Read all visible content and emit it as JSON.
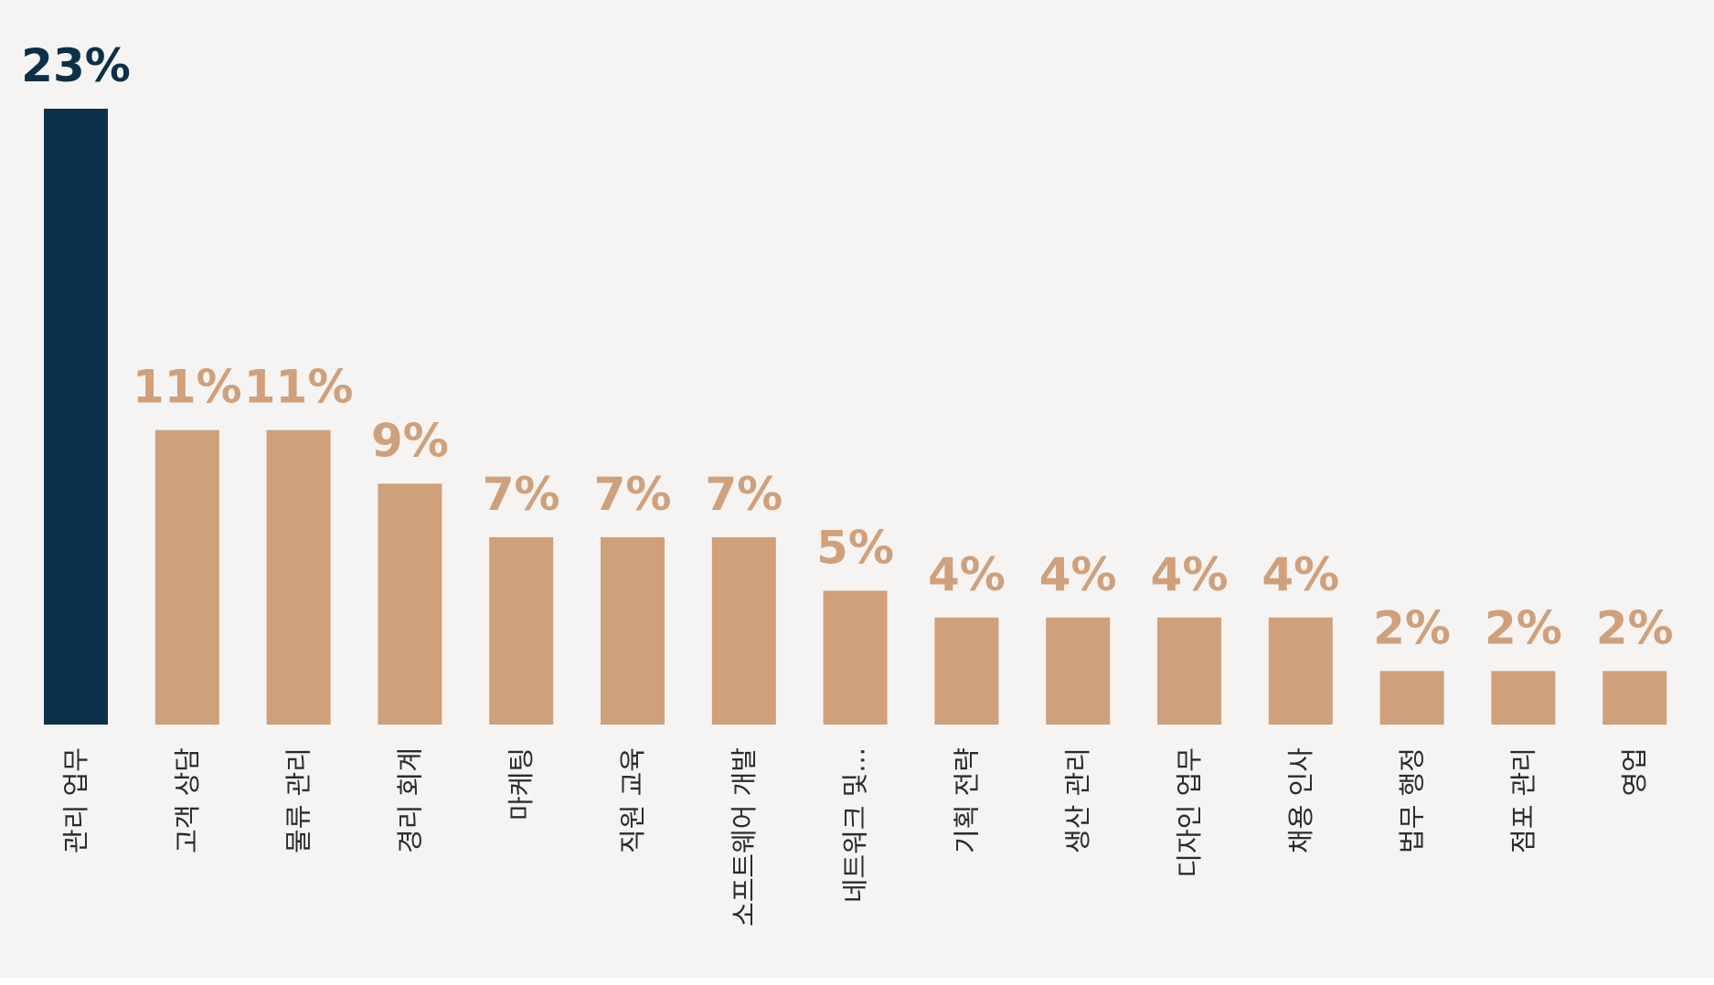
{
  "chart_data": {
    "type": "bar",
    "categories": [
      "관리 업무",
      "고객 상담",
      "물류 관리",
      "경리 회계",
      "마케팅",
      "직원 교육",
      "소프트웨어 개발",
      "네트워크 및...",
      "기획 전략",
      "생산 관리",
      "디자인 업무",
      "채용 인사",
      "법무 행정",
      "점포 관리",
      "영업"
    ],
    "values": [
      23,
      11,
      11,
      9,
      7,
      7,
      7,
      5,
      4,
      4,
      4,
      4,
      2,
      2,
      2
    ],
    "value_labels": [
      "23%",
      "11%",
      "11%",
      "9%",
      "7%",
      "7%",
      "7%",
      "5%",
      "4%",
      "4%",
      "4%",
      "4%",
      "2%",
      "2%",
      "2%"
    ],
    "highlight_index": 0,
    "colors": {
      "highlight": "#0b3049",
      "default": "#cfa07a",
      "background": "#f6f4f2",
      "category_text": "#2b2b2b"
    },
    "ylim": [
      0,
      23
    ],
    "grid": false,
    "legend": "none",
    "title": "",
    "xlabel": "",
    "ylabel": ""
  }
}
